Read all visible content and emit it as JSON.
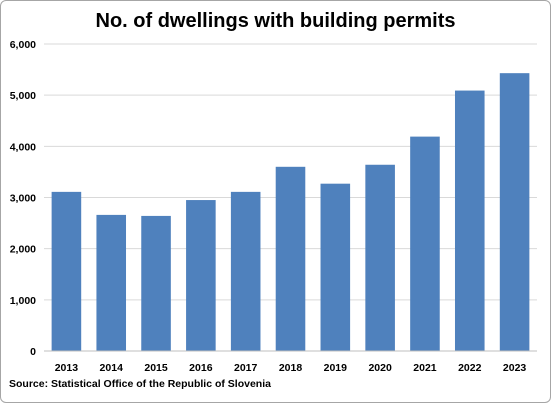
{
  "chart_data": {
    "type": "bar",
    "title": "No. of dwellings with building permits",
    "categories": [
      "2013",
      "2014",
      "2015",
      "2016",
      "2017",
      "2018",
      "2019",
      "2020",
      "2021",
      "2022",
      "2023"
    ],
    "series": [
      {
        "values": [
          3110,
          2660,
          2640,
          2950,
          3110,
          3600,
          3270,
          3640,
          4190,
          5090,
          5430
        ]
      }
    ],
    "ylim": [
      0,
      6000
    ],
    "yticks": [
      0,
      1000,
      2000,
      3000,
      4000,
      5000,
      6000
    ],
    "ytick_labels": [
      "0",
      "1,000",
      "2,000",
      "3,000",
      "4,000",
      "5,000",
      "6,000"
    ],
    "grid": true,
    "bar_color": "#4f81bd",
    "source": "Source:  Statistical Office of the Republic of Slovenia"
  }
}
